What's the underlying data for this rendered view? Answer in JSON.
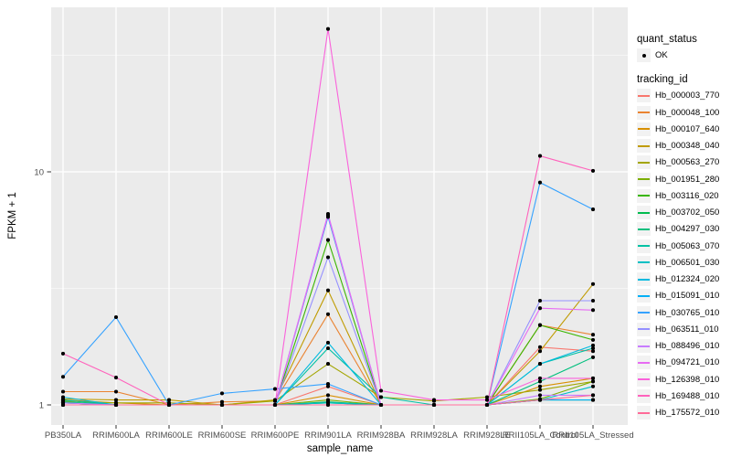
{
  "legend": {
    "quant_status_title": "quant_status",
    "quant_status_items": [
      {
        "label": "OK",
        "marker": "black-point"
      }
    ],
    "tracking_title": "tracking_id"
  },
  "chart_data": {
    "type": "line",
    "title": "",
    "xlabel": "sample_name",
    "ylabel": "FPKM + 1",
    "y_scale": "log10",
    "ylim": [
      0.82,
      50.9
    ],
    "y_major_breaks": [
      1,
      10
    ],
    "y_tick_labels": [
      "1",
      "10"
    ],
    "y_minor_breaks": [
      3.162,
      31.62
    ],
    "grid": "on",
    "legend_position": "right",
    "panel_background": "#EBEBEB",
    "gridline_color": "#FFFFFF",
    "point_color": "#000000",
    "tick_label_color": "#4D4D4D",
    "x_categories": [
      "PB350LA",
      "RRIM600LA",
      "RRIM600LE",
      "RRIM600SE",
      "RRIM600PE",
      "RRIM901LA",
      "RRIM928BA",
      "RRIM928LA",
      "RRIM928LE",
      "RRII105LA_Control",
      "RRII105LA_Stressed"
    ],
    "series": [
      {
        "name": "Hb_000003_770",
        "color": "#F8766D",
        "values": [
          1.02,
          1.0,
          1.0,
          1.0,
          1.0,
          1.2,
          1.0,
          1.0,
          1.0,
          1.77,
          1.7
        ]
      },
      {
        "name": "Hb_000048_100",
        "color": "#EA8331",
        "values": [
          1.14,
          1.14,
          1.0,
          1.03,
          1.04,
          2.45,
          1.0,
          1.0,
          1.0,
          2.2,
          2.0
        ]
      },
      {
        "name": "Hb_000107_640",
        "color": "#D89000",
        "values": [
          1.05,
          1.02,
          1.0,
          1.0,
          1.0,
          1.1,
          1.0,
          1.0,
          1.0,
          1.2,
          1.3
        ]
      },
      {
        "name": "Hb_000348_040",
        "color": "#C09B00",
        "values": [
          1.06,
          1.05,
          1.05,
          1.0,
          1.05,
          3.1,
          1.0,
          1.0,
          1.0,
          1.7,
          3.3
        ]
      },
      {
        "name": "Hb_000563_270",
        "color": "#A3A500",
        "values": [
          1.04,
          1.02,
          1.02,
          1.0,
          1.04,
          1.5,
          1.08,
          1.04,
          1.08,
          1.16,
          1.26
        ]
      },
      {
        "name": "Hb_001951_280",
        "color": "#7CAE00",
        "values": [
          1.03,
          1.0,
          1.0,
          1.0,
          1.0,
          1.05,
          1.0,
          1.0,
          1.0,
          1.06,
          1.26
        ]
      },
      {
        "name": "Hb_003116_020",
        "color": "#39B600",
        "values": [
          1.05,
          1.0,
          1.0,
          1.0,
          1.0,
          5.1,
          1.0,
          1.0,
          1.0,
          2.2,
          1.9
        ]
      },
      {
        "name": "Hb_003702_050",
        "color": "#00BB4E",
        "values": [
          1.02,
          1.0,
          1.0,
          1.0,
          1.0,
          1.02,
          1.0,
          1.0,
          1.0,
          1.05,
          1.05
        ]
      },
      {
        "name": "Hb_004297_030",
        "color": "#00BF7D",
        "values": [
          1.03,
          1.0,
          1.0,
          1.0,
          1.0,
          1.03,
          1.0,
          1.0,
          1.0,
          1.26,
          1.6
        ]
      },
      {
        "name": "Hb_005063_070",
        "color": "#00C1A3",
        "values": [
          1.05,
          1.0,
          1.0,
          1.0,
          1.0,
          1.75,
          1.08,
          1.0,
          1.0,
          1.5,
          1.75
        ]
      },
      {
        "name": "Hb_006501_030",
        "color": "#00BFC4",
        "values": [
          1.02,
          1.0,
          1.0,
          1.0,
          1.0,
          1.02,
          1.0,
          1.0,
          1.0,
          1.05,
          1.2
        ]
      },
      {
        "name": "Hb_012324_020",
        "color": "#00BAE0",
        "values": [
          1.08,
          1.0,
          1.0,
          1.0,
          1.0,
          1.85,
          1.0,
          1.0,
          1.0,
          1.5,
          1.8
        ]
      },
      {
        "name": "Hb_015091_010",
        "color": "#00B0F6",
        "values": [
          1.0,
          1.0,
          1.0,
          1.0,
          1.0,
          6.4,
          1.0,
          1.0,
          1.0,
          1.05,
          1.05
        ]
      },
      {
        "name": "Hb_030765_010",
        "color": "#35A2FF",
        "values": [
          1.32,
          2.38,
          1.0,
          1.12,
          1.17,
          1.23,
          1.0,
          1.0,
          1.0,
          9.0,
          6.9
        ]
      },
      {
        "name": "Hb_063511_010",
        "color": "#9590FF",
        "values": [
          1.0,
          1.0,
          1.0,
          1.0,
          1.0,
          4.3,
          1.0,
          1.0,
          1.0,
          2.8,
          2.8
        ]
      },
      {
        "name": "Hb_088496_010",
        "color": "#C77CFF",
        "values": [
          1.02,
          1.0,
          1.0,
          1.0,
          1.0,
          6.6,
          1.0,
          1.0,
          1.0,
          1.1,
          1.1
        ]
      },
      {
        "name": "Hb_094721_010",
        "color": "#E76BF3",
        "values": [
          1.0,
          1.0,
          1.0,
          1.0,
          1.0,
          6.5,
          1.0,
          1.0,
          1.0,
          2.6,
          2.55
        ]
      },
      {
        "name": "Hb_126398_010",
        "color": "#FA62DB",
        "values": [
          1.0,
          1.0,
          1.0,
          1.0,
          1.0,
          41.0,
          1.15,
          1.05,
          1.05,
          1.3,
          1.3
        ]
      },
      {
        "name": "Hb_169488_010",
        "color": "#FF62BC",
        "values": [
          1.66,
          1.31,
          1.0,
          1.0,
          1.0,
          1.0,
          1.0,
          1.0,
          1.0,
          11.7,
          10.1
        ]
      },
      {
        "name": "Hb_175572_010",
        "color": "#FF6A98",
        "values": [
          1.0,
          1.0,
          1.0,
          1.0,
          1.0,
          1.0,
          1.0,
          1.0,
          1.0,
          1.05,
          1.1
        ]
      }
    ]
  }
}
